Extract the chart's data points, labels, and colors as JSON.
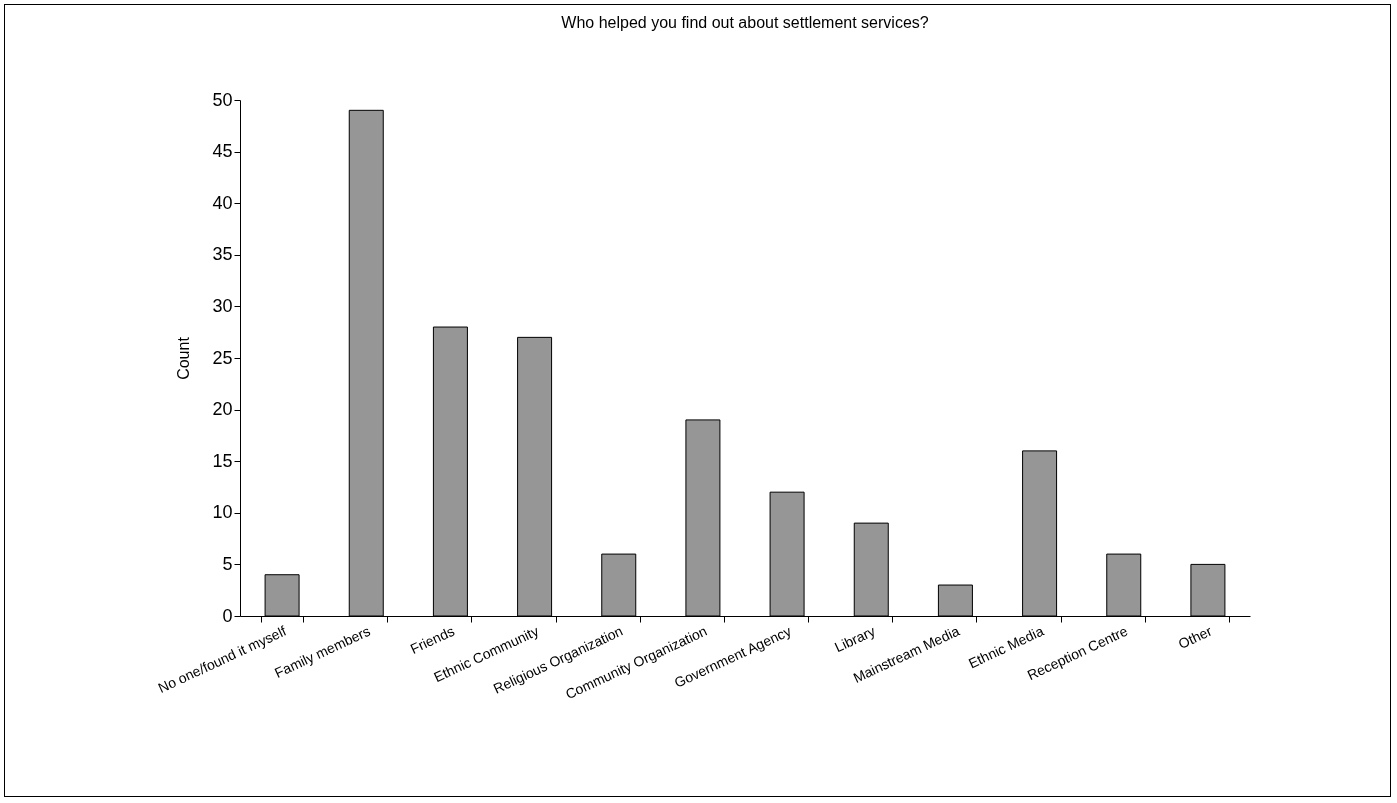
{
  "chart_data": {
    "type": "bar",
    "title": "Who helped you find out about settlement services?",
    "ylabel": "Count",
    "categories": [
      "No one/found it myself",
      "Family members",
      "Friends",
      "Ethnic Community",
      "Religious Organization",
      "Community Organization",
      "Government Agency",
      "Library",
      "Mainstream Media",
      "Ethnic Media",
      "Reception Centre",
      "Other"
    ],
    "values": [
      4,
      49,
      28,
      27,
      6,
      19,
      12,
      9,
      3,
      16,
      6,
      5
    ],
    "color": "#969696",
    "ylim": [
      0,
      50
    ],
    "yticks": [
      0,
      5,
      10,
      15,
      20,
      25,
      30,
      35,
      40,
      45,
      50
    ],
    "grid": false
  }
}
